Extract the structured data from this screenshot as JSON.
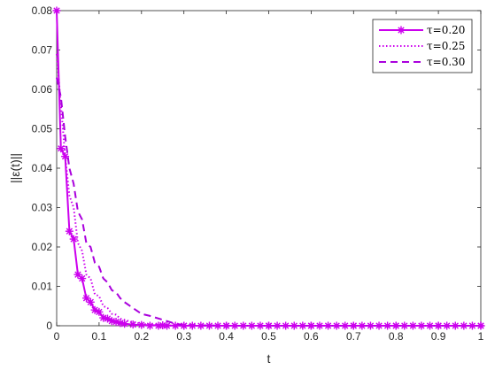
{
  "chart_data": {
    "type": "line",
    "xlabel": "t",
    "ylabel": "||ε(t)||",
    "xlim": [
      0,
      1
    ],
    "ylim": [
      0,
      0.08
    ],
    "x_ticks": [
      "0",
      "0.1",
      "0.2",
      "0.3",
      "0.4",
      "0.5",
      "0.6",
      "0.7",
      "0.8",
      "0.9",
      "1"
    ],
    "y_ticks": [
      "0",
      "0.01",
      "0.02",
      "0.03",
      "0.04",
      "0.05",
      "0.06",
      "0.07",
      "0.08"
    ],
    "grid": false,
    "legend_position": "top-right",
    "series": [
      {
        "name": "τ=0.20",
        "style": "solid-marker",
        "color": "#cc00ee",
        "x": [
          0.0,
          0.01,
          0.02,
          0.03,
          0.04,
          0.05,
          0.06,
          0.07,
          0.08,
          0.09,
          0.1,
          0.11,
          0.12,
          0.13,
          0.14,
          0.15,
          0.16,
          0.18,
          0.2,
          0.25,
          0.3,
          0.4,
          0.5,
          0.6,
          0.7,
          0.8,
          0.9,
          1.0
        ],
        "y": [
          0.08,
          0.045,
          0.043,
          0.024,
          0.022,
          0.013,
          0.012,
          0.007,
          0.006,
          0.004,
          0.0035,
          0.002,
          0.0018,
          0.0012,
          0.001,
          0.0007,
          0.0005,
          0.0003,
          0.0002,
          0.0001,
          0.0,
          0.0,
          0.0,
          0.0,
          0.0,
          0.0,
          0.0,
          0.0
        ]
      },
      {
        "name": "τ=0.25",
        "style": "dotted",
        "color": "#cc00ee",
        "x": [
          0.0,
          0.01,
          0.02,
          0.03,
          0.04,
          0.05,
          0.06,
          0.07,
          0.08,
          0.09,
          0.1,
          0.11,
          0.12,
          0.13,
          0.14,
          0.15,
          0.17,
          0.19,
          0.21,
          0.25,
          0.3,
          0.4,
          0.5,
          0.6,
          0.7,
          0.8,
          0.9,
          1.0
        ],
        "y": [
          0.069,
          0.056,
          0.043,
          0.033,
          0.03,
          0.021,
          0.019,
          0.013,
          0.012,
          0.008,
          0.0075,
          0.005,
          0.0045,
          0.003,
          0.0028,
          0.0018,
          0.0012,
          0.0007,
          0.0004,
          0.0001,
          0.0,
          0.0,
          0.0,
          0.0,
          0.0,
          0.0,
          0.0,
          0.0
        ]
      },
      {
        "name": "τ=0.30",
        "style": "dashed",
        "color": "#aa00dd",
        "x": [
          0.0,
          0.01,
          0.02,
          0.03,
          0.04,
          0.05,
          0.06,
          0.07,
          0.08,
          0.09,
          0.1,
          0.11,
          0.12,
          0.13,
          0.14,
          0.15,
          0.16,
          0.18,
          0.2,
          0.22,
          0.25,
          0.28,
          0.3,
          0.4,
          0.5,
          0.6,
          0.7,
          0.8,
          0.9,
          1.0
        ],
        "y": [
          0.063,
          0.058,
          0.048,
          0.04,
          0.036,
          0.029,
          0.027,
          0.021,
          0.02,
          0.016,
          0.015,
          0.012,
          0.011,
          0.009,
          0.0085,
          0.007,
          0.006,
          0.0045,
          0.003,
          0.0025,
          0.0015,
          0.0005,
          0.0002,
          0.0,
          0.0,
          0.0,
          0.0,
          0.0,
          0.0,
          0.0
        ]
      }
    ]
  }
}
